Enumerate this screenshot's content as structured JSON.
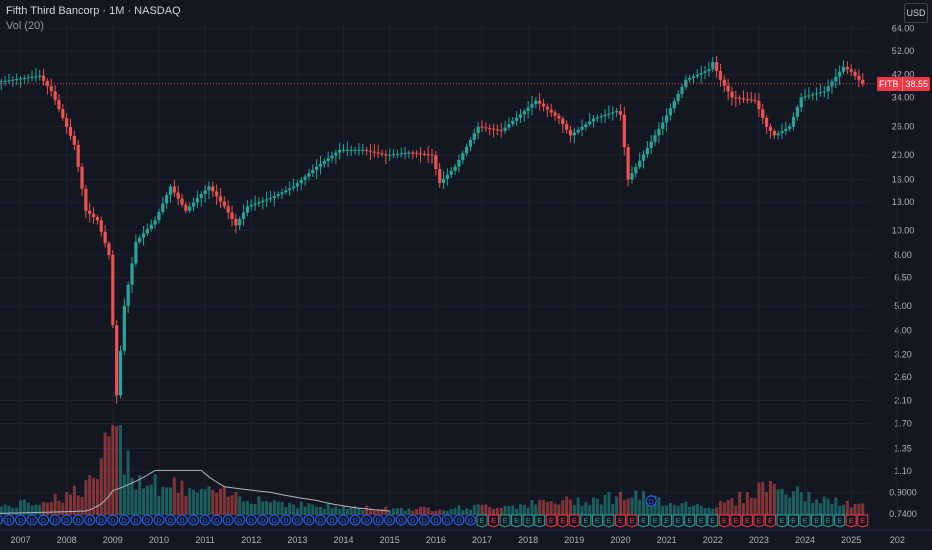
{
  "header": {
    "title": "Fifth Third Bancorp · 1M · NASDAQ",
    "indicator": "Vol (20)",
    "currency": "USD"
  },
  "last_price": {
    "symbol": "FITB",
    "value": "38.55"
  },
  "colors": {
    "up": "#26a69a",
    "down": "#ef5350",
    "background": "#131722",
    "grid": "#1e222d",
    "text": "#b2b5be",
    "dividend_marker": "#2962ff",
    "earnings_up": "#26a69a",
    "earnings_down": "#f23645"
  },
  "chart_data": {
    "type": "candlestick",
    "title": "Fifth Third Bancorp · 1M · NASDAQ",
    "y_scale": "log",
    "ylim": [
      0.7,
      68
    ],
    "y_ticks": [
      64.0,
      52.0,
      42.0,
      34.0,
      26.0,
      20.0,
      16.0,
      13.0,
      10.0,
      8.0,
      6.5,
      5.0,
      4.0,
      3.2,
      2.6,
      2.1,
      1.7,
      1.35,
      1.1,
      0.9,
      0.74
    ],
    "y_tick_labels": [
      "64.00",
      "52.00",
      "42.00",
      "34.00",
      "26.00",
      "20.00",
      "16.00",
      "13.00",
      "10.00",
      "8.00",
      "6.50",
      "5.00",
      "4.00",
      "3.20",
      "2.60",
      "2.10",
      "1.70",
      "1.35",
      "1.10",
      "0.9000",
      "0.7400"
    ],
    "x_ticks": [
      "2007",
      "2008",
      "2009",
      "2010",
      "2011",
      "2012",
      "2013",
      "2014",
      "2015",
      "2016",
      "2017",
      "2018",
      "2019",
      "2020",
      "2021",
      "2022",
      "2023",
      "2024",
      "2025",
      "202"
    ],
    "price_path": [
      [
        "2006-06",
        39
      ],
      [
        "2007-06",
        41.5
      ],
      [
        "2007-09",
        36
      ],
      [
        "2008-03",
        22
      ],
      [
        "2008-06",
        12
      ],
      [
        "2008-09",
        11
      ],
      [
        "2008-12",
        8
      ],
      [
        "2009-02",
        2.2
      ],
      [
        "2009-04",
        5
      ],
      [
        "2009-07",
        9
      ],
      [
        "2009-12",
        11
      ],
      [
        "2010-04",
        15
      ],
      [
        "2010-08",
        12
      ],
      [
        "2010-12",
        14
      ],
      [
        "2011-02",
        15
      ],
      [
        "2011-06",
        12.5
      ],
      [
        "2011-09",
        10.5
      ],
      [
        "2011-12",
        12.5
      ],
      [
        "2012-06",
        13.5
      ],
      [
        "2012-12",
        15
      ],
      [
        "2013-06",
        18
      ],
      [
        "2013-12",
        21
      ],
      [
        "2014-06",
        21
      ],
      [
        "2014-12",
        20
      ],
      [
        "2015-06",
        20.5
      ],
      [
        "2015-12",
        20
      ],
      [
        "2016-02",
        15.5
      ],
      [
        "2016-06",
        18
      ],
      [
        "2016-12",
        26
      ],
      [
        "2017-06",
        25
      ],
      [
        "2017-12",
        30
      ],
      [
        "2018-03",
        33
      ],
      [
        "2018-09",
        28
      ],
      [
        "2018-12",
        24
      ],
      [
        "2019-06",
        28
      ],
      [
        "2019-12",
        30
      ],
      [
        "2020-01",
        29
      ],
      [
        "2020-03",
        16
      ],
      [
        "2020-06",
        19
      ],
      [
        "2020-12",
        27
      ],
      [
        "2021-06",
        40
      ],
      [
        "2021-12",
        44
      ],
      [
        "2022-01",
        47
      ],
      [
        "2022-03",
        40
      ],
      [
        "2022-06",
        34
      ],
      [
        "2022-12",
        33
      ],
      [
        "2023-03",
        26
      ],
      [
        "2023-05",
        24
      ],
      [
        "2023-09",
        26
      ],
      [
        "2023-12",
        34
      ],
      [
        "2024-06",
        36
      ],
      [
        "2024-11",
        45
      ],
      [
        "2025-01",
        43
      ],
      [
        "2025-04",
        38.55
      ]
    ],
    "volume_path": [
      [
        "2006-06",
        0.08
      ],
      [
        "2008-06",
        0.3
      ],
      [
        "2008-09",
        0.45
      ],
      [
        "2009-01",
        1.0
      ],
      [
        "2009-03",
        0.85
      ],
      [
        "2009-07",
        0.45
      ],
      [
        "2010-01",
        0.35
      ],
      [
        "2010-06",
        0.3
      ],
      [
        "2011-01",
        0.25
      ],
      [
        "2012-01",
        0.2
      ],
      [
        "2013-01",
        0.12
      ],
      [
        "2014-01",
        0.08
      ],
      [
        "2016-01",
        0.07
      ],
      [
        "2020-03",
        0.22
      ],
      [
        "2022-01",
        0.1
      ],
      [
        "2023-03",
        0.35
      ],
      [
        "2025-04",
        0.1
      ]
    ],
    "volume_ma_path": [
      [
        "2006-06",
        0.02
      ],
      [
        "2008-06",
        0.05
      ],
      [
        "2009-01",
        0.3
      ],
      [
        "2009-12",
        0.55
      ],
      [
        "2010-12",
        0.55
      ],
      [
        "2011-06",
        0.35
      ],
      [
        "2012-06",
        0.28
      ],
      [
        "2013-06",
        0.18
      ],
      [
        "2014-06",
        0.08
      ],
      [
        "2015-01",
        0.05
      ]
    ],
    "event_markers": {
      "dividend_letter": "D",
      "earnings_letter": "E",
      "dividend_until": "2017-01",
      "extra_dividend": "2020-09"
    }
  }
}
